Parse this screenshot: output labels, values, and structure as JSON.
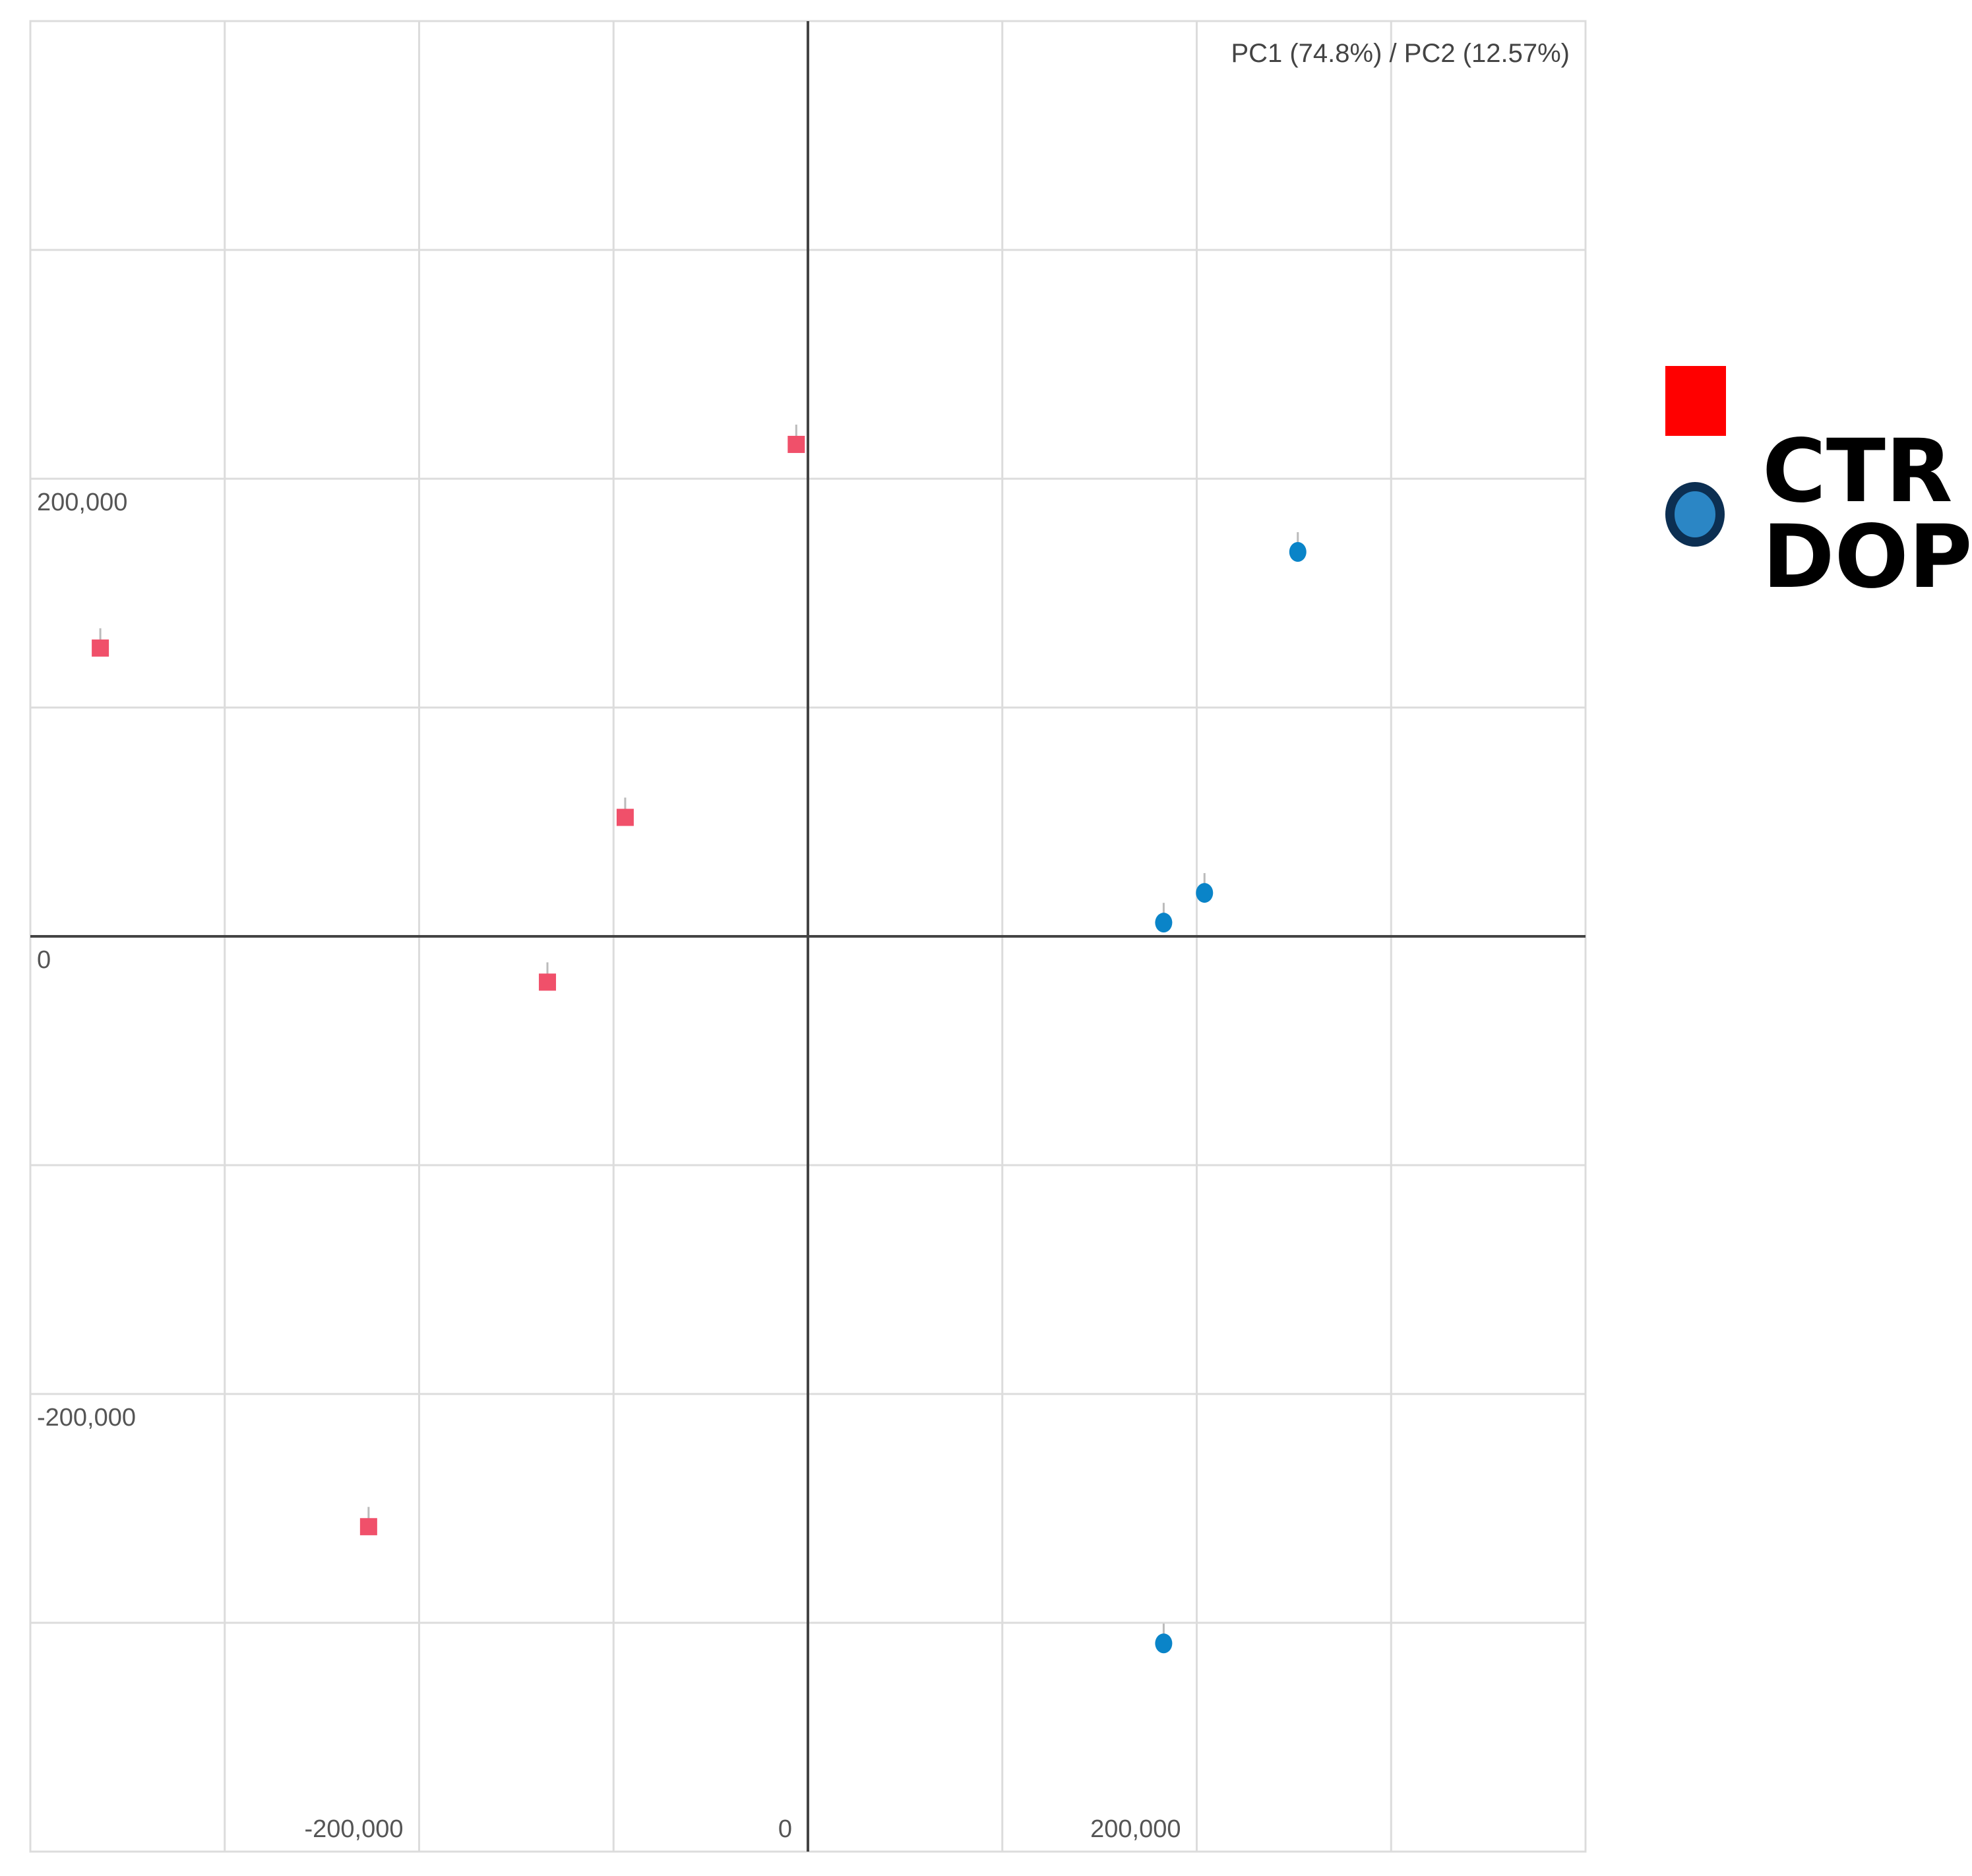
{
  "chart_data": {
    "type": "scatter",
    "title": "",
    "subtitle": "PC1 (74.8%) / PC2 (12.57%)",
    "xlabel": "",
    "ylabel": "",
    "xlim": [
      -400000,
      400000
    ],
    "ylim": [
      -400000,
      400000
    ],
    "grid": true,
    "x_ticks": [
      {
        "value": -200000,
        "label": "-200,000"
      },
      {
        "value": 0,
        "label": "0"
      },
      {
        "value": 200000,
        "label": "200,000"
      }
    ],
    "y_ticks": [
      {
        "value": 200000,
        "label": "200,000"
      },
      {
        "value": 0,
        "label": "0"
      },
      {
        "value": -200000,
        "label": "-200,000"
      }
    ],
    "series": [
      {
        "name": "CTR",
        "marker": "square",
        "color": "#f0506a",
        "legend_color": "#ff0000",
        "points": [
          {
            "x": -364000,
            "y": 126000
          },
          {
            "x": -6000,
            "y": 215000
          },
          {
            "x": -94000,
            "y": 52000
          },
          {
            "x": -134000,
            "y": -20000
          },
          {
            "x": -226000,
            "y": -258000
          }
        ]
      },
      {
        "name": "DOP",
        "marker": "circle",
        "color": "#0a84c8",
        "legend_color": "#2b86c5",
        "legend_border": "#0c2f52",
        "points": [
          {
            "x": 252000,
            "y": 168000
          },
          {
            "x": 204000,
            "y": 19000
          },
          {
            "x": 183000,
            "y": 6000
          },
          {
            "x": 183000,
            "y": -309000
          }
        ]
      }
    ],
    "legend": {
      "position": "right",
      "items": [
        "CTR",
        "DOP"
      ]
    },
    "axis_color": "#444444",
    "grid_color": "#dcdcdc"
  }
}
